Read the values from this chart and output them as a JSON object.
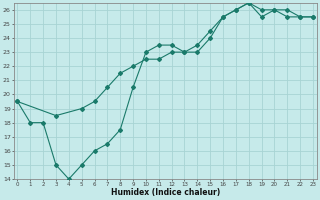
{
  "xlabel": "Humidex (Indice chaleur)",
  "bg_color": "#c6eaea",
  "grid_color": "#a8d4d4",
  "line_color": "#1a7a6a",
  "line1_x": [
    0,
    1,
    2,
    3,
    4,
    5,
    6,
    7,
    8,
    9,
    10,
    11,
    12,
    13,
    14,
    15,
    16,
    17,
    18,
    19,
    20,
    21,
    22,
    23
  ],
  "line1_y": [
    19.5,
    18.0,
    18.0,
    15.0,
    14.0,
    15.0,
    16.0,
    16.5,
    17.5,
    20.5,
    23.0,
    23.5,
    23.5,
    23.0,
    23.0,
    24.0,
    25.5,
    26.0,
    26.5,
    25.5,
    26.0,
    25.5,
    25.5,
    25.5
  ],
  "line2_x": [
    0,
    3,
    5,
    6,
    7,
    8,
    9,
    10,
    11,
    12,
    13,
    14,
    15,
    16,
    17,
    18,
    19,
    20,
    21,
    22,
    23
  ],
  "line2_y": [
    19.5,
    18.5,
    19.0,
    19.5,
    20.5,
    21.5,
    22.0,
    22.5,
    22.5,
    23.0,
    23.0,
    23.5,
    24.5,
    25.5,
    26.0,
    26.5,
    26.0,
    26.0,
    26.0,
    25.5,
    25.5
  ],
  "xlim": [
    -0.3,
    23.3
  ],
  "ylim": [
    14,
    26.5
  ],
  "yticks": [
    14,
    15,
    16,
    17,
    18,
    19,
    20,
    21,
    22,
    23,
    24,
    25,
    26
  ],
  "xticks": [
    0,
    1,
    2,
    3,
    4,
    5,
    6,
    7,
    8,
    9,
    10,
    11,
    12,
    13,
    14,
    15,
    16,
    17,
    18,
    19,
    20,
    21,
    22,
    23
  ]
}
